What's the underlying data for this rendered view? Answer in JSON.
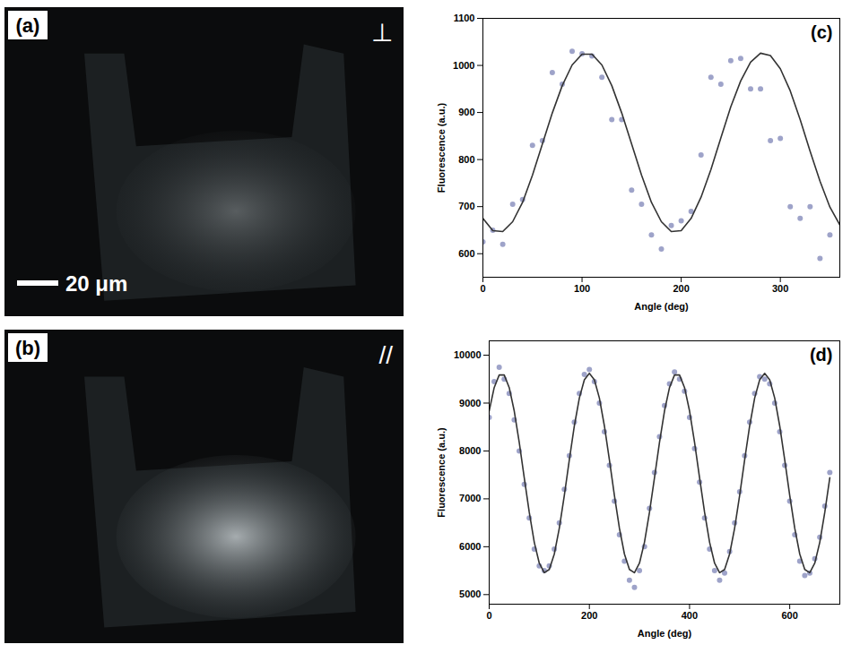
{
  "images": [
    {
      "label": "(a)",
      "polarization": "⊥",
      "scale_bar": "20 μm"
    },
    {
      "label": "(b)",
      "polarization": "//"
    }
  ],
  "chart_data": [
    {
      "type": "scatter",
      "title": "(c)",
      "x_label": "Angle (deg)",
      "y_label": "Fluorescence (a.u.)",
      "xlim": [
        0,
        360
      ],
      "xticks": [
        0,
        100,
        200,
        300
      ],
      "ylim": [
        550,
        1100
      ],
      "yticks": [
        600,
        700,
        800,
        900,
        1000,
        1100
      ],
      "grid": false,
      "series": [
        {
          "type": "scatter",
          "color": "#9ea3c9",
          "marker": "circle",
          "x": [
            0,
            10,
            20,
            30,
            40,
            50,
            60,
            70,
            80,
            90,
            100,
            110,
            120,
            130,
            140,
            150,
            160,
            170,
            180,
            190,
            200,
            210,
            220,
            230,
            240,
            250,
            260,
            270,
            280,
            290,
            300,
            310,
            320,
            330,
            340,
            350
          ],
          "values": [
            625,
            650,
            620,
            705,
            715,
            830,
            840,
            985,
            960,
            1030,
            1025,
            1020,
            975,
            885,
            885,
            735,
            705,
            640,
            610,
            660,
            670,
            690,
            810,
            975,
            960,
            1010,
            1015,
            950,
            950,
            840,
            845,
            700,
            675,
            700,
            590,
            640
          ]
        },
        {
          "type": "line",
          "color": "#333333",
          "line_style": "solid",
          "x": [
            0,
            10,
            20,
            30,
            40,
            50,
            60,
            70,
            80,
            90,
            100,
            110,
            120,
            130,
            140,
            150,
            160,
            170,
            180,
            190,
            200,
            210,
            220,
            230,
            240,
            250,
            260,
            270,
            280,
            290,
            300,
            310,
            320,
            330,
            340,
            350,
            360
          ],
          "values": [
            675,
            649,
            647,
            668,
            709,
            767,
            833,
            899,
            957,
            1001,
            1024,
            1024,
            1001,
            957,
            899,
            833,
            767,
            709,
            668,
            647,
            649,
            675,
            720,
            779,
            846,
            912,
            967,
            1007,
            1026,
            1021,
            993,
            946,
            885,
            818,
            754,
            699,
            661
          ]
        }
      ]
    },
    {
      "type": "scatter",
      "title": "(d)",
      "x_label": "Angle (deg)",
      "y_label": "Fluorescence (a.u.)",
      "xlim": [
        0,
        700
      ],
      "xticks": [
        0,
        200,
        400,
        600
      ],
      "ylim": [
        4800,
        10300
      ],
      "yticks": [
        5000,
        6000,
        7000,
        8000,
        9000,
        10000
      ],
      "grid": false,
      "series": [
        {
          "type": "scatter",
          "color": "#9ea3c9",
          "marker": "circle",
          "x": [
            0,
            10,
            20,
            30,
            40,
            50,
            60,
            70,
            80,
            90,
            100,
            110,
            120,
            130,
            140,
            150,
            160,
            170,
            180,
            190,
            200,
            210,
            220,
            230,
            240,
            250,
            260,
            270,
            280,
            290,
            300,
            310,
            320,
            330,
            340,
            350,
            360,
            370,
            380,
            390,
            400,
            410,
            420,
            430,
            440,
            450,
            460,
            470,
            480,
            490,
            500,
            510,
            520,
            530,
            540,
            550,
            560,
            570,
            580,
            590,
            600,
            610,
            620,
            630,
            640,
            650,
            660,
            670,
            680
          ],
          "values": [
            8700,
            9450,
            9750,
            9500,
            9200,
            8650,
            8000,
            7300,
            6600,
            5950,
            5600,
            5500,
            5600,
            5950,
            6500,
            7200,
            7900,
            8600,
            9200,
            9600,
            9700,
            9450,
            9000,
            8400,
            7700,
            6950,
            6250,
            5700,
            5300,
            5150,
            5500,
            6000,
            6800,
            7550,
            8300,
            8950,
            9400,
            9650,
            9500,
            9250,
            8700,
            8050,
            7350,
            6600,
            5950,
            5500,
            5300,
            5450,
            5900,
            6500,
            7150,
            7900,
            8600,
            9200,
            9550,
            9500,
            9400,
            9000,
            8400,
            7700,
            6950,
            6250,
            5700,
            5400,
            5450,
            5750,
            6200,
            6850,
            7550
          ]
        },
        {
          "type": "line",
          "color": "#333333",
          "line_style": "solid",
          "x": [
            0,
            10,
            20,
            30,
            40,
            50,
            60,
            70,
            80,
            90,
            100,
            110,
            120,
            130,
            140,
            150,
            160,
            170,
            180,
            190,
            200,
            210,
            220,
            230,
            240,
            250,
            260,
            270,
            280,
            290,
            300,
            310,
            320,
            330,
            340,
            350,
            360,
            370,
            380,
            390,
            400,
            410,
            420,
            430,
            440,
            450,
            460,
            470,
            480,
            490,
            500,
            510,
            520,
            530,
            540,
            550,
            560,
            570,
            580,
            590,
            600,
            610,
            620,
            630,
            640,
            650,
            660,
            670,
            680
          ],
          "values": [
            8836,
            9324,
            9587,
            9587,
            9324,
            8836,
            8179,
            7441,
            6718,
            6094,
            5656,
            5458,
            5525,
            5848,
            6388,
            7070,
            7814,
            8523,
            9105,
            9487,
            9620,
            9487,
            9105,
            8523,
            7814,
            7070,
            6386,
            5848,
            5525,
            5458,
            5656,
            6094,
            6718,
            7441,
            8179,
            8836,
            9324,
            9587,
            9587,
            9324,
            8836,
            8179,
            7441,
            6718,
            6094,
            5656,
            5458,
            5525,
            5848,
            6388,
            7070,
            7814,
            8523,
            9105,
            9487,
            9620,
            9487,
            9105,
            8523,
            7814,
            7070,
            6386,
            5848,
            5525,
            5458,
            5656,
            6094,
            6718,
            7441
          ]
        }
      ]
    }
  ]
}
